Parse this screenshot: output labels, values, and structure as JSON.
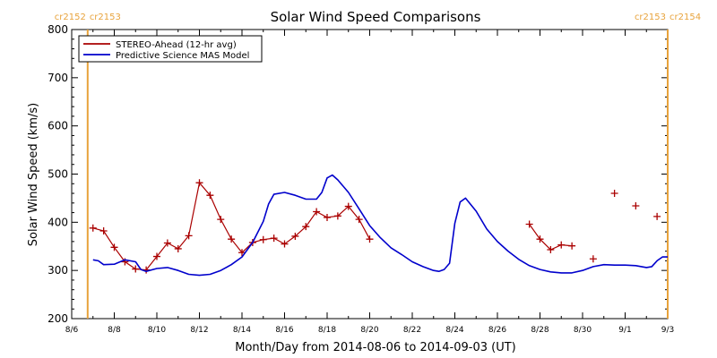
{
  "chart_data": {
    "type": "line",
    "title": "Solar Wind Speed Comparisons",
    "xlabel": "Month/Day from 2014-08-06 to 2014-09-03 (UT)",
    "ylabel": "Solar Wind Speed (km/s)",
    "ylim": [
      200,
      800
    ],
    "yticks": [
      200,
      300,
      400,
      500,
      600,
      700,
      800
    ],
    "xlim": [
      "2014-08-06",
      "2014-09-03"
    ],
    "xticks": [
      {
        "date": "2014-08-06",
        "label": "8/6"
      },
      {
        "date": "2014-08-08",
        "label": "8/8"
      },
      {
        "date": "2014-08-10",
        "label": "8/10"
      },
      {
        "date": "2014-08-12",
        "label": "8/12"
      },
      {
        "date": "2014-08-14",
        "label": "8/14"
      },
      {
        "date": "2014-08-16",
        "label": "8/16"
      },
      {
        "date": "2014-08-18",
        "label": "8/18"
      },
      {
        "date": "2014-08-20",
        "label": "8/20"
      },
      {
        "date": "2014-08-22",
        "label": "8/22"
      },
      {
        "date": "2014-08-24",
        "label": "8/24"
      },
      {
        "date": "2014-08-26",
        "label": "8/26"
      },
      {
        "date": "2014-08-28",
        "label": "8/28"
      },
      {
        "date": "2014-08-30",
        "label": "8/30"
      },
      {
        "date": "2014-09-01",
        "label": "9/1"
      },
      {
        "date": "2014-09-03",
        "label": "9/3"
      }
    ],
    "grid": false,
    "legend_position": "top-left",
    "carrington_markers": [
      {
        "date": "2014-08-06 18:00",
        "left_label": "cr2152",
        "right_label": "cr2153"
      },
      {
        "date": "2014-09-03 00:00",
        "left_label": "cr2153",
        "right_label": "cr2154"
      }
    ],
    "carrington_color": "#e8a33c",
    "series": [
      {
        "name": "STEREO-Ahead (12-hr avg)",
        "color": "#aa0000",
        "marker": "plus",
        "segments": [
          [
            [
              "2014-08-07 00:00",
              388
            ],
            [
              "2014-08-07 12:00",
              382
            ],
            [
              "2014-08-08 00:00",
              348
            ],
            [
              "2014-08-08 12:00",
              318
            ],
            [
              "2014-08-09 00:00",
              303
            ],
            [
              "2014-08-09 12:00",
              301
            ],
            [
              "2014-08-10 00:00",
              329
            ],
            [
              "2014-08-10 12:00",
              357
            ],
            [
              "2014-08-11 00:00",
              345
            ],
            [
              "2014-08-11 12:00",
              372
            ],
            [
              "2014-08-12 00:00",
              482
            ],
            [
              "2014-08-12 12:00",
              456
            ],
            [
              "2014-08-13 00:00",
              406
            ],
            [
              "2014-08-13 12:00",
              365
            ],
            [
              "2014-08-14 00:00",
              337
            ],
            [
              "2014-08-14 12:00",
              358
            ],
            [
              "2014-08-15 00:00",
              364
            ],
            [
              "2014-08-15 12:00",
              367
            ],
            [
              "2014-08-16 00:00",
              355
            ],
            [
              "2014-08-16 12:00",
              371
            ],
            [
              "2014-08-17 00:00",
              391
            ],
            [
              "2014-08-17 12:00",
              422
            ],
            [
              "2014-08-18 00:00",
              410
            ],
            [
              "2014-08-18 12:00",
              413
            ],
            [
              "2014-08-19 00:00",
              433
            ],
            [
              "2014-08-19 12:00",
              406
            ],
            [
              "2014-08-20 00:00",
              365
            ]
          ],
          [
            [
              "2014-08-27 12:00",
              396
            ],
            [
              "2014-08-28 00:00",
              365
            ],
            [
              "2014-08-28 12:00",
              343
            ],
            [
              "2014-08-29 00:00",
              353
            ],
            [
              "2014-08-29 12:00",
              351
            ]
          ],
          [
            [
              "2014-08-30 12:00",
              324
            ]
          ],
          [
            [
              "2014-08-31 12:00",
              460
            ]
          ],
          [
            [
              "2014-09-01 12:00",
              434
            ]
          ],
          [
            [
              "2014-09-02 12:00",
              412
            ]
          ]
        ]
      },
      {
        "name": "Predictive Science MAS Model",
        "color": "#0000cc",
        "marker": "none",
        "points": [
          [
            "2014-08-07 00:00",
            322
          ],
          [
            "2014-08-07 06:00",
            320
          ],
          [
            "2014-08-07 12:00",
            312
          ],
          [
            "2014-08-08 00:00",
            313
          ],
          [
            "2014-08-08 12:00",
            322
          ],
          [
            "2014-08-09 00:00",
            318
          ],
          [
            "2014-08-09 06:00",
            302
          ],
          [
            "2014-08-09 12:00",
            298
          ],
          [
            "2014-08-10 00:00",
            304
          ],
          [
            "2014-08-10 12:00",
            306
          ],
          [
            "2014-08-11 00:00",
            300
          ],
          [
            "2014-08-11 12:00",
            292
          ],
          [
            "2014-08-12 00:00",
            290
          ],
          [
            "2014-08-12 12:00",
            292
          ],
          [
            "2014-08-13 00:00",
            300
          ],
          [
            "2014-08-13 12:00",
            312
          ],
          [
            "2014-08-14 00:00",
            328
          ],
          [
            "2014-08-14 12:00",
            358
          ],
          [
            "2014-08-15 00:00",
            402
          ],
          [
            "2014-08-15 06:00",
            438
          ],
          [
            "2014-08-15 12:00",
            458
          ],
          [
            "2014-08-16 00:00",
            462
          ],
          [
            "2014-08-16 12:00",
            456
          ],
          [
            "2014-08-17 00:00",
            448
          ],
          [
            "2014-08-17 12:00",
            448
          ],
          [
            "2014-08-17 18:00",
            462
          ],
          [
            "2014-08-18 00:00",
            492
          ],
          [
            "2014-08-18 06:00",
            498
          ],
          [
            "2014-08-18 12:00",
            488
          ],
          [
            "2014-08-19 00:00",
            462
          ],
          [
            "2014-08-19 12:00",
            428
          ],
          [
            "2014-08-20 00:00",
            393
          ],
          [
            "2014-08-20 12:00",
            368
          ],
          [
            "2014-08-21 00:00",
            347
          ],
          [
            "2014-08-21 12:00",
            333
          ],
          [
            "2014-08-22 00:00",
            318
          ],
          [
            "2014-08-22 12:00",
            308
          ],
          [
            "2014-08-23 00:00",
            300
          ],
          [
            "2014-08-23 06:00",
            298
          ],
          [
            "2014-08-23 12:00",
            302
          ],
          [
            "2014-08-23 18:00",
            315
          ],
          [
            "2014-08-24 00:00",
            398
          ],
          [
            "2014-08-24 06:00",
            442
          ],
          [
            "2014-08-24 12:00",
            450
          ],
          [
            "2014-08-25 00:00",
            423
          ],
          [
            "2014-08-25 12:00",
            386
          ],
          [
            "2014-08-26 00:00",
            360
          ],
          [
            "2014-08-26 12:00",
            340
          ],
          [
            "2014-08-27 00:00",
            323
          ],
          [
            "2014-08-27 12:00",
            310
          ],
          [
            "2014-08-28 00:00",
            302
          ],
          [
            "2014-08-28 12:00",
            297
          ],
          [
            "2014-08-29 00:00",
            295
          ],
          [
            "2014-08-29 12:00",
            295
          ],
          [
            "2014-08-30 00:00",
            300
          ],
          [
            "2014-08-30 12:00",
            308
          ],
          [
            "2014-08-31 00:00",
            312
          ],
          [
            "2014-08-31 12:00",
            311
          ],
          [
            "2014-09-01 00:00",
            311
          ],
          [
            "2014-09-01 12:00",
            310
          ],
          [
            "2014-09-02 00:00",
            306
          ],
          [
            "2014-09-02 06:00",
            308
          ],
          [
            "2014-09-02 12:00",
            320
          ],
          [
            "2014-09-02 18:00",
            328
          ],
          [
            "2014-09-03 00:00",
            328
          ]
        ]
      }
    ]
  }
}
